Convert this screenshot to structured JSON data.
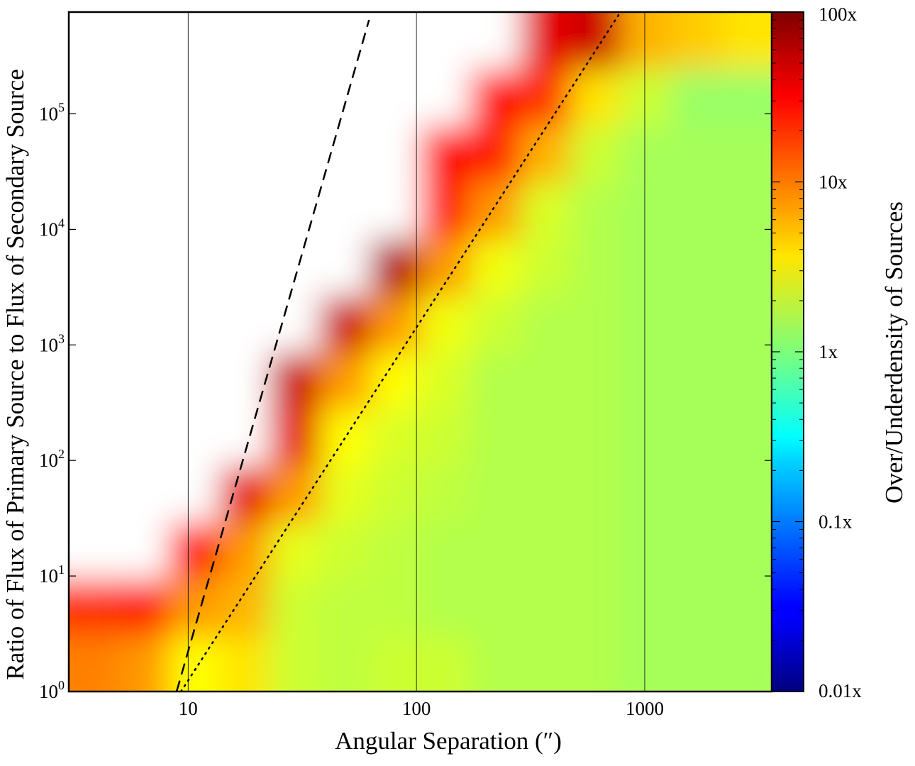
{
  "chart_data": {
    "type": "heatmap",
    "xlabel": "Angular Separation (″)",
    "ylabel": "Ratio of Flux of Primary Source to Flux of Secondary Source",
    "xscale": "log",
    "yscale": "log",
    "xlim": [
      3.0,
      3600
    ],
    "ylim": [
      1,
      760000
    ],
    "xticks": [
      {
        "value": 10,
        "label": "10"
      },
      {
        "value": 100,
        "label": "100"
      },
      {
        "value": 1000,
        "label": "1000"
      }
    ],
    "yticks": [
      {
        "value": 1,
        "base": "10",
        "exp": "0"
      },
      {
        "value": 10,
        "base": "10",
        "exp": "1"
      },
      {
        "value": 100,
        "base": "10",
        "exp": "2"
      },
      {
        "value": 1000,
        "base": "10",
        "exp": "3"
      },
      {
        "value": 10000,
        "base": "10",
        "exp": "4"
      },
      {
        "value": 100000,
        "base": "10",
        "exp": "5"
      }
    ],
    "grid": "vertical lines at major x ticks",
    "z_note_units": "log10 of over/underdensity ratio; null = no data",
    "z_rows_bottom_to_top": [
      [
        1.0,
        0.9,
        0.5,
        0.6,
        0.3,
        0.25,
        0.3,
        0.3,
        0.2,
        0.2,
        0.2,
        0.15,
        0.15,
        0.15
      ],
      [
        1.3,
        1.4,
        0.9,
        0.8,
        0.3,
        0.25,
        0.25,
        0.2,
        0.2,
        0.2,
        0.2,
        0.15,
        0.15,
        0.15
      ],
      [
        null,
        null,
        1.5,
        0.9,
        0.4,
        0.3,
        0.25,
        0.2,
        0.2,
        0.2,
        0.2,
        0.15,
        0.15,
        0.15
      ],
      [
        null,
        null,
        null,
        1.6,
        0.9,
        0.4,
        0.3,
        0.25,
        0.2,
        0.2,
        0.2,
        0.15,
        0.15,
        0.15
      ],
      [
        null,
        null,
        null,
        null,
        1.6,
        0.5,
        0.35,
        0.3,
        0.2,
        0.2,
        0.2,
        0.15,
        0.15,
        0.15
      ],
      [
        null,
        null,
        null,
        null,
        1.7,
        0.9,
        0.5,
        0.35,
        0.2,
        0.2,
        0.2,
        0.15,
        0.15,
        0.15
      ],
      [
        null,
        null,
        null,
        null,
        null,
        1.7,
        0.9,
        0.45,
        0.3,
        0.2,
        0.2,
        0.15,
        0.15,
        0.15
      ],
      [
        null,
        null,
        null,
        null,
        null,
        null,
        1.8,
        0.9,
        0.45,
        0.3,
        0.2,
        0.15,
        0.15,
        0.15
      ],
      [
        null,
        null,
        null,
        null,
        null,
        null,
        null,
        1.4,
        0.9,
        0.35,
        0.2,
        0.15,
        0.15,
        0.15
      ],
      [
        null,
        null,
        null,
        null,
        null,
        null,
        null,
        1.5,
        1.4,
        0.8,
        0.3,
        0.15,
        0.15,
        0.15
      ],
      [
        null,
        null,
        null,
        null,
        null,
        null,
        null,
        null,
        1.5,
        1.3,
        0.6,
        0.3,
        0.1,
        0.1
      ],
      [
        null,
        null,
        null,
        null,
        null,
        null,
        null,
        null,
        null,
        1.6,
        1.7,
        0.8,
        0.7,
        0.6
      ]
    ],
    "lines": [
      {
        "name": "dashed",
        "style": "dashed",
        "x": [
          8.9,
          62
        ],
        "y": [
          1,
          650000
        ]
      },
      {
        "name": "dotted",
        "style": "dotted",
        "x": [
          9.3,
          783
        ],
        "y": [
          1,
          760000
        ]
      }
    ],
    "colorbar": {
      "label": "Over/Underdensity of Sources",
      "scale": "log",
      "range": [
        0.01,
        100
      ],
      "colormap": "jet",
      "ticks": [
        {
          "value": 0.01,
          "label": "0.01x"
        },
        {
          "value": 0.1,
          "label": "0.1x"
        },
        {
          "value": 1,
          "label": "1x"
        },
        {
          "value": 10,
          "label": "10x"
        },
        {
          "value": 100,
          "label": "100x"
        }
      ]
    }
  }
}
